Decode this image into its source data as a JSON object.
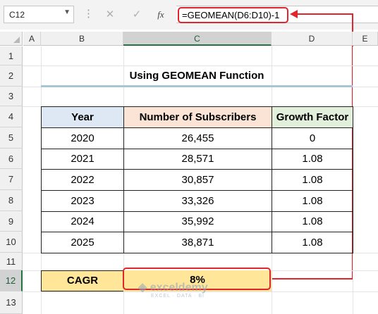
{
  "toolbar": {
    "name_box": "C12",
    "name_box_arrow": "▼",
    "cancel_icon": "✕",
    "enter_icon": "✓",
    "fx_label": "fx",
    "formula": "=GEOMEAN(D6:D10)-1"
  },
  "columns": [
    "A",
    "B",
    "C",
    "D",
    "E"
  ],
  "rows": [
    "1",
    "2",
    "3",
    "4",
    "5",
    "6",
    "7",
    "8",
    "9",
    "10",
    "11",
    "12",
    "13"
  ],
  "sheet": {
    "title": "Using GEOMEAN Function",
    "headers": {
      "year": "Year",
      "subscribers": "Number of Subscribers",
      "growth": "Growth Factor"
    },
    "data": [
      {
        "year": "2020",
        "subscribers": "26,455",
        "growth": "0"
      },
      {
        "year": "2021",
        "subscribers": "28,571",
        "growth": "1.08"
      },
      {
        "year": "2022",
        "subscribers": "30,857",
        "growth": "1.08"
      },
      {
        "year": "2023",
        "subscribers": "33,326",
        "growth": "1.08"
      },
      {
        "year": "2024",
        "subscribers": "35,992",
        "growth": "1.08"
      },
      {
        "year": "2025",
        "subscribers": "38,871",
        "growth": "1.08"
      }
    ],
    "cagr_label": "CAGR",
    "cagr_value": "8%"
  },
  "watermark": {
    "name": "exceldemy",
    "tagline": "EXCEL · DATA · BI"
  },
  "colors": {
    "highlight": "#e0252c",
    "year_header": "#dde8f4",
    "subs_header": "#fbe4d6",
    "growth_header": "#e2efda",
    "cagr": "#ffe699"
  }
}
